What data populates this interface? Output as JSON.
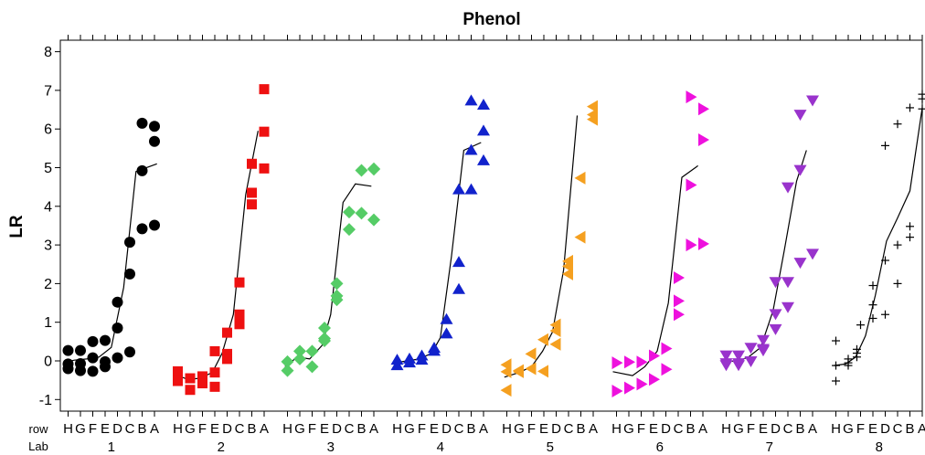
{
  "chart_data": {
    "type": "scatter",
    "title": "Phenol",
    "ylabel": "LR",
    "xlabel": "",
    "ylim": [
      -1.3,
      8.25
    ],
    "yticks": [
      -1,
      0,
      1,
      2,
      3,
      4,
      5,
      6,
      7,
      8
    ],
    "ytick_labels": [
      "-1",
      "0",
      "1",
      "2",
      "3",
      "4",
      "5",
      "6",
      "7",
      "8"
    ],
    "row_axis_label": "row",
    "lab_axis_label": "Lab",
    "row_labels": [
      "H",
      "G",
      "F",
      "E",
      "D",
      "C",
      "B",
      "A"
    ],
    "grid": false,
    "labs": [
      {
        "lab": "1",
        "color": "#000000",
        "marker": "circle",
        "points": [
          [
            0,
            0.27
          ],
          [
            0,
            -0.08
          ],
          [
            0,
            -0.2
          ],
          [
            1,
            0.27
          ],
          [
            1,
            -0.07
          ],
          [
            1,
            -0.25
          ],
          [
            2,
            0.5
          ],
          [
            2,
            0.08
          ],
          [
            2,
            -0.27
          ],
          [
            3,
            0.53
          ],
          [
            3,
            -0.02
          ],
          [
            3,
            -0.15
          ],
          [
            4,
            1.52
          ],
          [
            4,
            0.85
          ],
          [
            4,
            0.08
          ],
          [
            5,
            3.07
          ],
          [
            5,
            2.25
          ],
          [
            5,
            0.23
          ],
          [
            6,
            6.15
          ],
          [
            6,
            4.92
          ],
          [
            6,
            3.42
          ],
          [
            7,
            6.07
          ],
          [
            7,
            5.68
          ],
          [
            7,
            3.51
          ]
        ],
        "trend": [
          [
            -0.2,
            -0.03
          ],
          [
            0.5,
            0.02
          ],
          [
            1.5,
            0.05
          ],
          [
            2.5,
            0.1
          ],
          [
            3.5,
            0.35
          ],
          [
            4.5,
            1.9
          ],
          [
            5.5,
            4.9
          ],
          [
            7.2,
            5.1
          ]
        ]
      },
      {
        "lab": "2",
        "color": "#ee1111",
        "marker": "square",
        "points": [
          [
            0,
            -0.27
          ],
          [
            0,
            -0.52
          ],
          [
            1,
            -0.45
          ],
          [
            1,
            -0.75
          ],
          [
            2,
            -0.4
          ],
          [
            2,
            -0.58
          ],
          [
            3,
            0.25
          ],
          [
            3,
            -0.3
          ],
          [
            3,
            -0.67
          ],
          [
            4,
            0.73
          ],
          [
            4,
            0.18
          ],
          [
            4,
            0.05
          ],
          [
            5,
            2.03
          ],
          [
            5,
            1.2
          ],
          [
            5,
            0.95
          ],
          [
            6,
            5.1
          ],
          [
            6,
            4.35
          ],
          [
            6,
            4.05
          ],
          [
            7,
            7.03
          ],
          [
            7,
            5.93
          ],
          [
            7,
            4.98
          ]
        ],
        "trend": [
          [
            -0.2,
            -0.35
          ],
          [
            0.8,
            -0.48
          ],
          [
            1.8,
            -0.45
          ],
          [
            2.8,
            -0.3
          ],
          [
            3.6,
            0.2
          ],
          [
            4.5,
            1.2
          ],
          [
            5.5,
            4.3
          ],
          [
            6.5,
            5.95
          ]
        ]
      },
      {
        "lab": "3",
        "color": "#55cc66",
        "marker": "diamond",
        "points": [
          [
            0,
            -0.02
          ],
          [
            0,
            -0.25
          ],
          [
            1,
            0.25
          ],
          [
            1,
            0.05
          ],
          [
            2,
            0.25
          ],
          [
            2,
            -0.15
          ],
          [
            3,
            0.85
          ],
          [
            3,
            0.58
          ],
          [
            3,
            0.52
          ],
          [
            4,
            2.0
          ],
          [
            4,
            1.68
          ],
          [
            4,
            1.58
          ],
          [
            5,
            3.85
          ],
          [
            5,
            3.4
          ],
          [
            6,
            4.93
          ],
          [
            6,
            3.82
          ],
          [
            7,
            4.97
          ],
          [
            7,
            4.96
          ],
          [
            7,
            3.65
          ]
        ],
        "trend": [
          [
            -0.2,
            -0.15
          ],
          [
            0.8,
            0.1
          ],
          [
            1.8,
            0.05
          ],
          [
            2.8,
            0.4
          ],
          [
            3.5,
            1.2
          ],
          [
            4.5,
            4.1
          ],
          [
            5.5,
            4.58
          ],
          [
            6.8,
            4.52
          ]
        ]
      },
      {
        "lab": "4",
        "color": "#1122cc",
        "marker": "triangle-up",
        "points": [
          [
            0,
            0.02
          ],
          [
            0,
            -0.12
          ],
          [
            1,
            0.05
          ],
          [
            1,
            -0.05
          ],
          [
            2,
            0.13
          ],
          [
            2,
            0.02
          ],
          [
            3,
            0.33
          ],
          [
            3,
            0.25
          ],
          [
            4,
            1.07
          ],
          [
            4,
            0.7
          ],
          [
            5,
            4.43
          ],
          [
            5,
            2.55
          ],
          [
            5,
            1.85
          ],
          [
            6,
            6.73
          ],
          [
            6,
            5.45
          ],
          [
            6,
            4.43
          ],
          [
            7,
            6.62
          ],
          [
            7,
            5.95
          ],
          [
            7,
            5.18
          ]
        ],
        "trend": [
          [
            -0.2,
            -0.05
          ],
          [
            0.8,
            0.0
          ],
          [
            1.8,
            0.05
          ],
          [
            2.8,
            0.2
          ],
          [
            3.5,
            0.6
          ],
          [
            4.4,
            2.7
          ],
          [
            5.4,
            5.45
          ],
          [
            6.8,
            5.65
          ]
        ]
      },
      {
        "lab": "5",
        "color": "#f5a020",
        "marker": "triangle-left",
        "points": [
          [
            0,
            -0.1
          ],
          [
            0,
            -0.28
          ],
          [
            0,
            -0.76
          ],
          [
            1,
            -0.25
          ],
          [
            1,
            -0.28
          ],
          [
            2,
            0.18
          ],
          [
            2,
            -0.2
          ],
          [
            3,
            0.55
          ],
          [
            3,
            -0.27
          ],
          [
            4,
            0.93
          ],
          [
            4,
            0.78
          ],
          [
            4,
            0.43
          ],
          [
            5,
            2.58
          ],
          [
            5,
            2.45
          ],
          [
            5,
            2.25
          ],
          [
            6,
            4.73
          ],
          [
            6,
            3.2
          ],
          [
            7,
            6.58
          ],
          [
            7,
            6.37
          ],
          [
            7,
            6.25
          ]
        ],
        "trend": [
          [
            -0.2,
            -0.42
          ],
          [
            1,
            -0.3
          ],
          [
            2,
            -0.15
          ],
          [
            2.9,
            0.25
          ],
          [
            3.7,
            0.75
          ],
          [
            4.6,
            2.35
          ],
          [
            5.7,
            6.35
          ]
        ]
      },
      {
        "lab": "6",
        "color": "#ee11dd",
        "marker": "triangle-right",
        "points": [
          [
            0,
            -0.05
          ],
          [
            0,
            -0.78
          ],
          [
            1,
            -0.03
          ],
          [
            1,
            -0.7
          ],
          [
            2,
            -0.03
          ],
          [
            2,
            -0.6
          ],
          [
            3,
            0.13
          ],
          [
            3,
            -0.48
          ],
          [
            4,
            0.32
          ],
          [
            4,
            -0.22
          ],
          [
            5,
            2.15
          ],
          [
            5,
            1.55
          ],
          [
            5,
            1.2
          ],
          [
            6,
            6.83
          ],
          [
            6,
            4.55
          ],
          [
            6,
            3.0
          ],
          [
            7,
            6.52
          ],
          [
            7,
            5.72
          ],
          [
            7,
            3.03
          ]
        ],
        "trend": [
          [
            -0.3,
            -0.28
          ],
          [
            1.3,
            -0.38
          ],
          [
            2.3,
            -0.15
          ],
          [
            3.3,
            0.25
          ],
          [
            4.2,
            1.5
          ],
          [
            5.3,
            4.75
          ],
          [
            6.6,
            5.05
          ]
        ]
      },
      {
        "lab": "7",
        "color": "#9933cc",
        "marker": "triangle-down",
        "points": [
          [
            0,
            0.15
          ],
          [
            0,
            -0.05
          ],
          [
            0,
            -0.1
          ],
          [
            1,
            0.15
          ],
          [
            1,
            -0.05
          ],
          [
            1,
            -0.1
          ],
          [
            2,
            0.35
          ],
          [
            2,
            0.0
          ],
          [
            3,
            0.55
          ],
          [
            3,
            0.32
          ],
          [
            3,
            0.28
          ],
          [
            4,
            2.05
          ],
          [
            4,
            1.22
          ],
          [
            4,
            0.83
          ],
          [
            5,
            4.5
          ],
          [
            5,
            2.05
          ],
          [
            5,
            1.4
          ],
          [
            6,
            6.38
          ],
          [
            6,
            4.95
          ],
          [
            6,
            2.55
          ],
          [
            7,
            6.75
          ],
          [
            7,
            2.78
          ]
        ],
        "trend": [
          [
            -0.2,
            0.02
          ],
          [
            0.8,
            -0.02
          ],
          [
            1.8,
            0.1
          ],
          [
            2.8,
            0.35
          ],
          [
            3.8,
            1.3
          ],
          [
            4.7,
            2.85
          ],
          [
            5.7,
            4.65
          ],
          [
            6.5,
            5.45
          ]
        ]
      },
      {
        "lab": "8",
        "color": "#000000",
        "marker": "plus",
        "points": [
          [
            0,
            0.52
          ],
          [
            0,
            -0.12
          ],
          [
            0,
            -0.52
          ],
          [
            1,
            0.05
          ],
          [
            1,
            -0.05
          ],
          [
            1,
            -0.12
          ],
          [
            1.7,
            0.3
          ],
          [
            1.7,
            0.2
          ],
          [
            1.7,
            0.1
          ],
          [
            2,
            0.93
          ],
          [
            3,
            1.95
          ],
          [
            3,
            1.45
          ],
          [
            3,
            1.1
          ],
          [
            4,
            5.57
          ],
          [
            4,
            2.6
          ],
          [
            4,
            1.2
          ],
          [
            5,
            6.13
          ],
          [
            5,
            3.0
          ],
          [
            5,
            2.0
          ],
          [
            6,
            6.55
          ],
          [
            6,
            3.48
          ],
          [
            6,
            3.2
          ],
          [
            7,
            6.9
          ],
          [
            7,
            6.78
          ],
          [
            7,
            6.52
          ]
        ],
        "trend": [
          [
            -0.2,
            -0.12
          ],
          [
            0.8,
            -0.08
          ],
          [
            1.6,
            0.1
          ],
          [
            2.4,
            0.65
          ],
          [
            3.2,
            1.7
          ],
          [
            4.1,
            3.1
          ],
          [
            5.0,
            3.7
          ],
          [
            6.0,
            4.4
          ],
          [
            7.0,
            6.55
          ]
        ]
      }
    ]
  }
}
